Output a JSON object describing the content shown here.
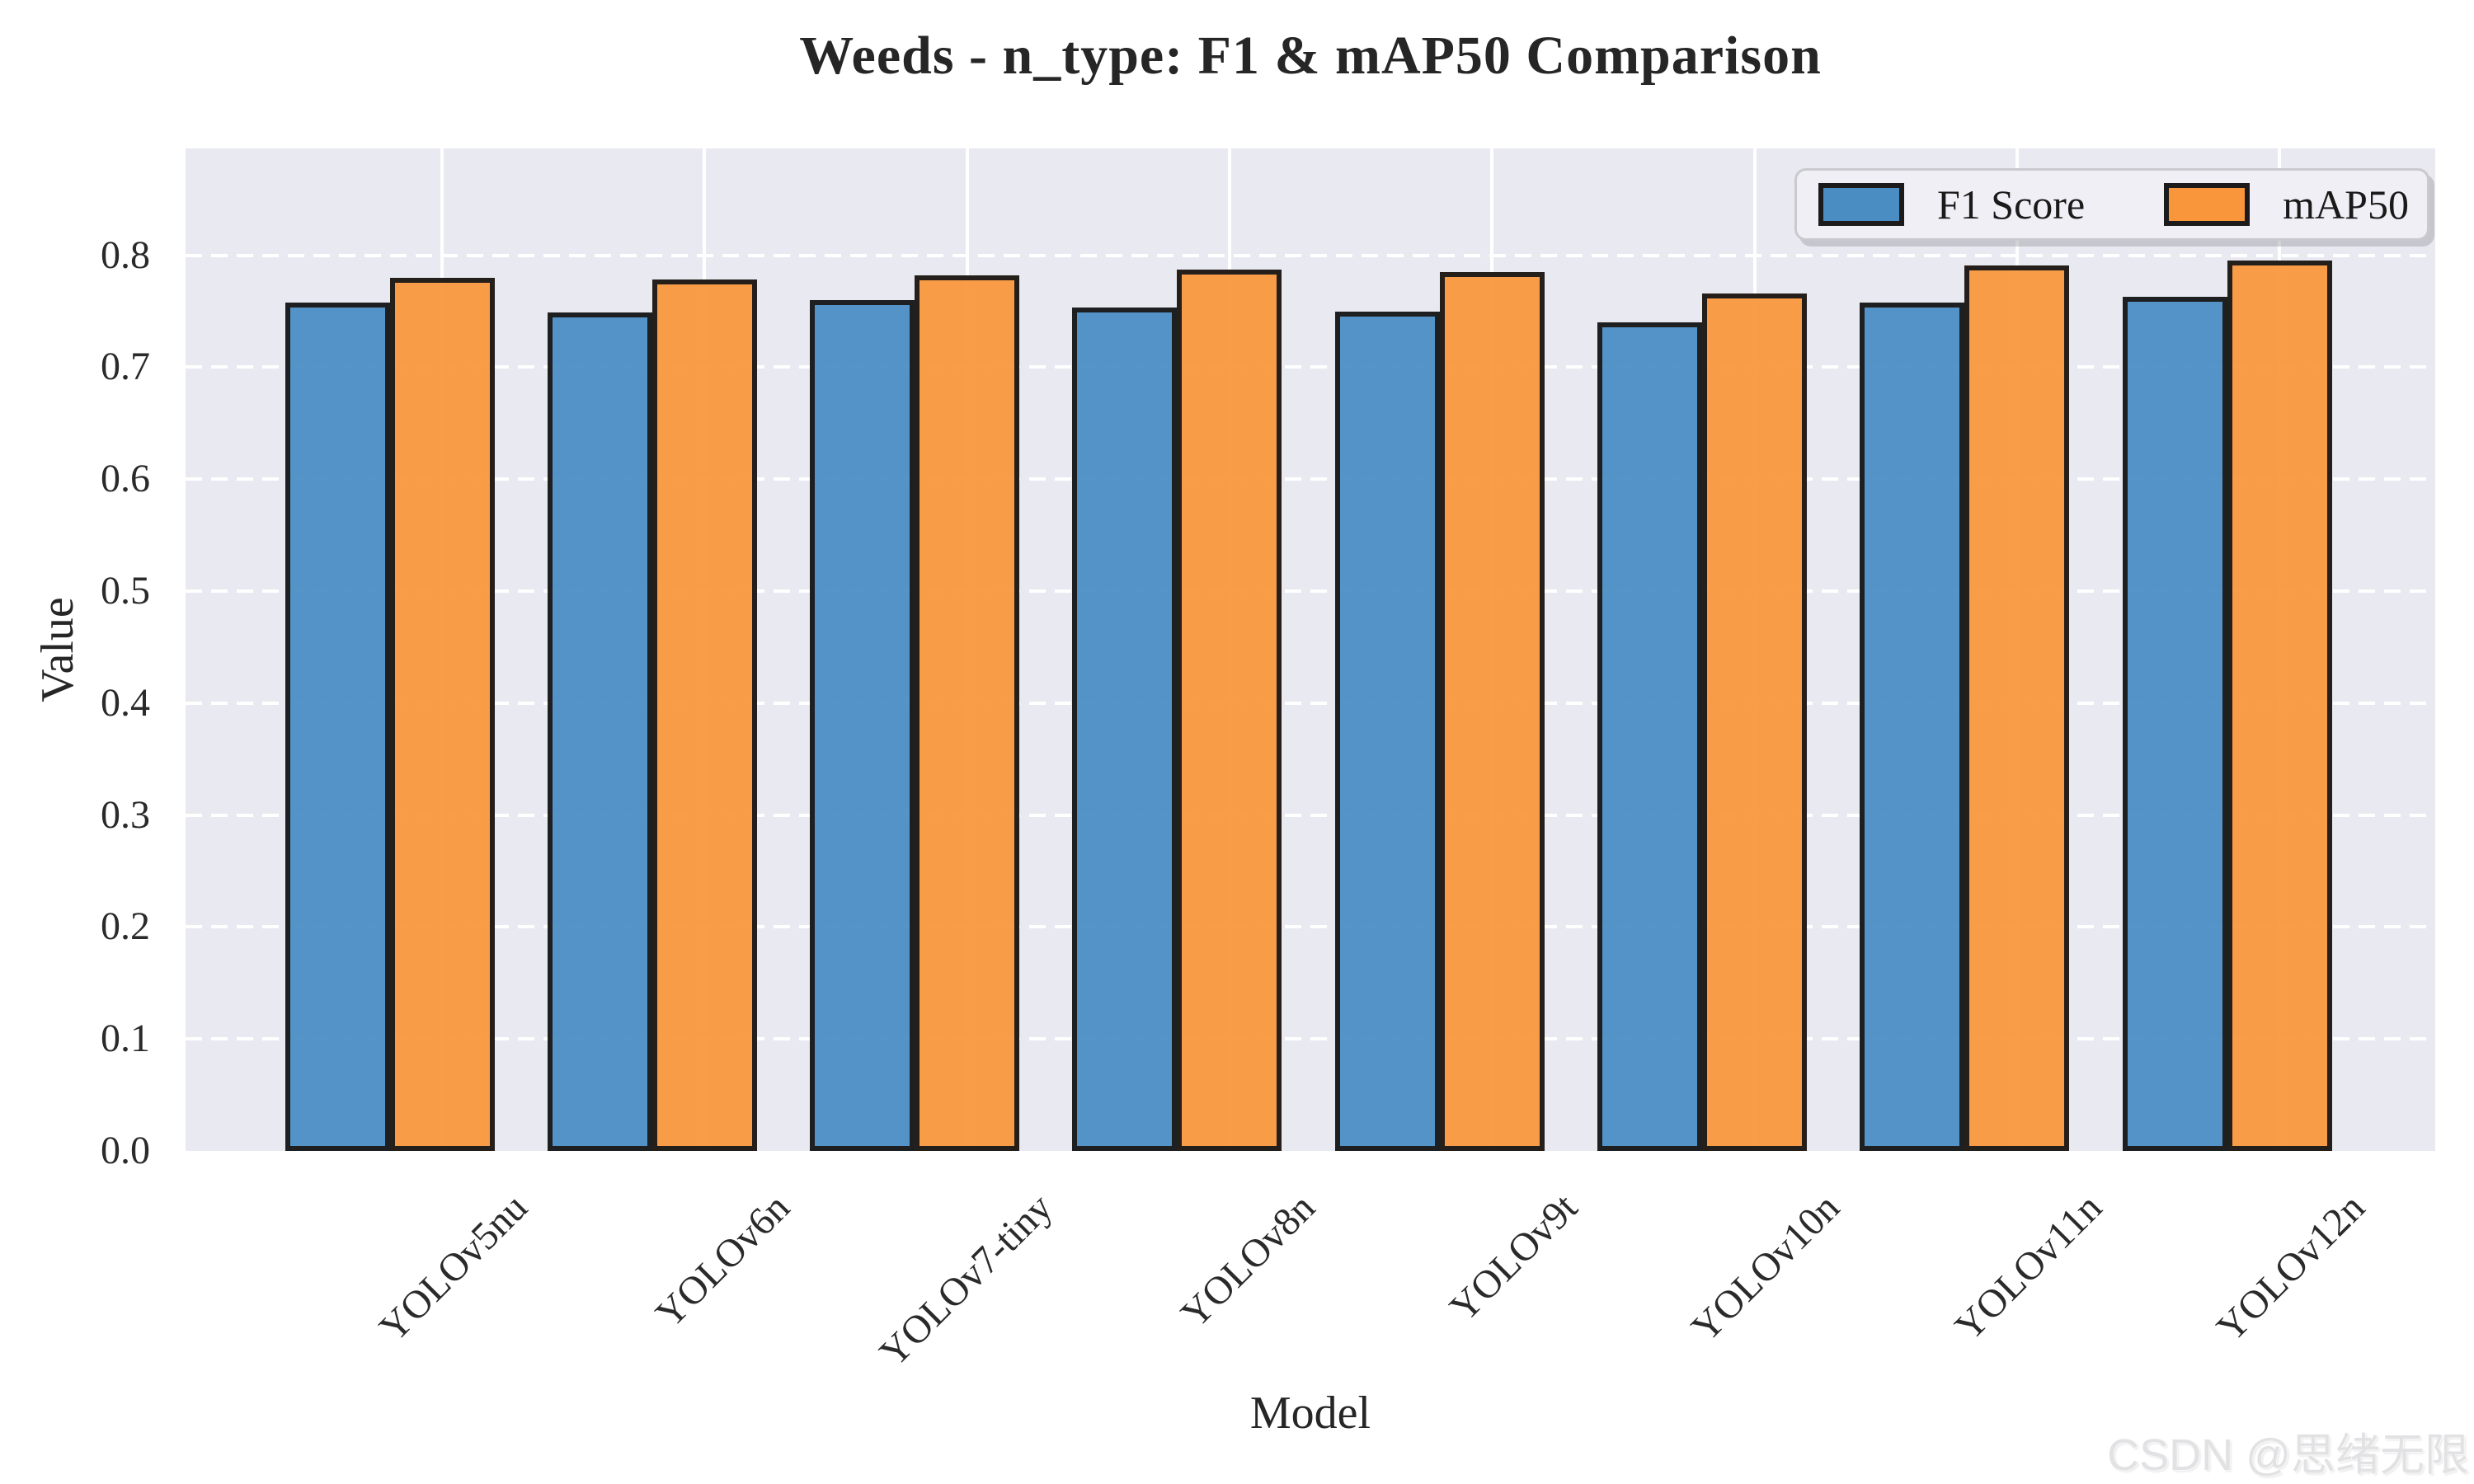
{
  "title": "Weeds - n_type: F1 & mAP50 Comparison",
  "watermark": "CSDN @思绪无限",
  "chart_data": {
    "type": "bar",
    "title": "Weeds - n_type: F1 & mAP50 Comparison",
    "xlabel": "Model",
    "ylabel": "Value",
    "categories": [
      "YOLOv5nu",
      "YOLOv6n",
      "YOLOv7-tiny",
      "YOLOv8n",
      "YOLOv9t",
      "YOLOv10n",
      "YOLOv11n",
      "YOLOv12n"
    ],
    "series": [
      {
        "name": "F1 Score",
        "color": "#4A8DC3",
        "values": [
          0.758,
          0.749,
          0.76,
          0.753,
          0.75,
          0.74,
          0.758,
          0.763
        ]
      },
      {
        "name": "mAP50",
        "color": "#F9963B",
        "values": [
          0.78,
          0.778,
          0.782,
          0.787,
          0.785,
          0.766,
          0.791,
          0.795
        ]
      }
    ],
    "ylim": [
      0.0,
      0.895
    ],
    "yticks": [
      0.0,
      0.1,
      0.2,
      0.3,
      0.4,
      0.5,
      0.6,
      0.7,
      0.8
    ],
    "grid": true,
    "grid_color": "#FFFFFF",
    "plot_background": "#E9E9F1",
    "bar_edge_color": "#1C1A1A",
    "legend_position": "upper right"
  }
}
